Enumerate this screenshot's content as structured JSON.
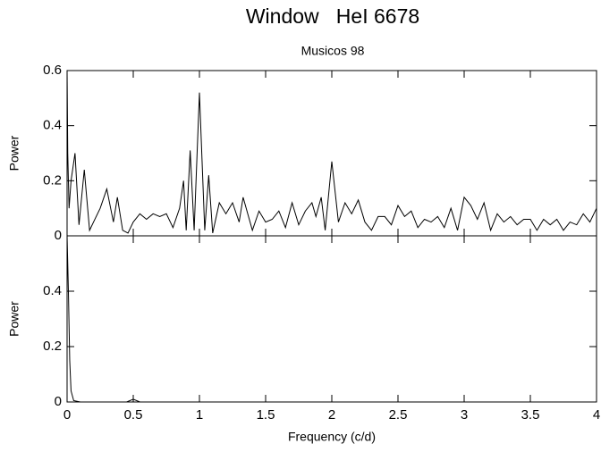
{
  "chart_data": [
    {
      "type": "line",
      "title": "Window   HeI 6678",
      "subtitle": "Musicos 98",
      "ylabel": "Power",
      "color": "#000000",
      "xlim": [
        0,
        4
      ],
      "ylim": [
        0,
        0.6
      ],
      "yticks": [
        0,
        0.2,
        0.4,
        0.6
      ],
      "x": [
        0,
        0.005,
        0.015,
        0.03,
        0.06,
        0.09,
        0.13,
        0.17,
        0.2,
        0.25,
        0.3,
        0.35,
        0.38,
        0.42,
        0.46,
        0.5,
        0.55,
        0.6,
        0.65,
        0.7,
        0.75,
        0.8,
        0.85,
        0.88,
        0.9,
        0.93,
        0.96,
        1.0,
        1.04,
        1.07,
        1.1,
        1.15,
        1.2,
        1.25,
        1.3,
        1.33,
        1.4,
        1.45,
        1.5,
        1.55,
        1.6,
        1.65,
        1.7,
        1.75,
        1.8,
        1.85,
        1.88,
        1.92,
        1.95,
        2.0,
        2.05,
        2.1,
        2.15,
        2.2,
        2.25,
        2.3,
        2.35,
        2.4,
        2.45,
        2.5,
        2.55,
        2.6,
        2.65,
        2.7,
        2.75,
        2.8,
        2.85,
        2.9,
        2.95,
        3.0,
        3.05,
        3.1,
        3.15,
        3.2,
        3.25,
        3.3,
        3.35,
        3.4,
        3.45,
        3.5,
        3.55,
        3.6,
        3.65,
        3.7,
        3.75,
        3.8,
        3.85,
        3.9,
        3.95,
        4.0
      ],
      "values": [
        0.6,
        0.3,
        0.1,
        0.2,
        0.3,
        0.04,
        0.24,
        0.02,
        0.05,
        0.1,
        0.17,
        0.05,
        0.14,
        0.02,
        0.01,
        0.05,
        0.08,
        0.06,
        0.08,
        0.07,
        0.08,
        0.03,
        0.1,
        0.2,
        0.02,
        0.31,
        0.02,
        0.52,
        0.02,
        0.22,
        0.01,
        0.12,
        0.08,
        0.12,
        0.05,
        0.14,
        0.02,
        0.09,
        0.05,
        0.06,
        0.09,
        0.03,
        0.12,
        0.04,
        0.09,
        0.12,
        0.07,
        0.14,
        0.02,
        0.27,
        0.05,
        0.12,
        0.08,
        0.13,
        0.05,
        0.02,
        0.07,
        0.07,
        0.04,
        0.11,
        0.07,
        0.09,
        0.03,
        0.06,
        0.05,
        0.07,
        0.03,
        0.1,
        0.02,
        0.14,
        0.11,
        0.06,
        0.12,
        0.02,
        0.08,
        0.05,
        0.07,
        0.04,
        0.06,
        0.06,
        0.02,
        0.06,
        0.04,
        0.06,
        0.02,
        0.05,
        0.04,
        0.08,
        0.05,
        0.1
      ]
    },
    {
      "type": "line",
      "ylabel": "Power",
      "xlabel": "Frequency (c/d)",
      "color": "#000000",
      "xlim": [
        0,
        4
      ],
      "ylim": [
        0,
        0.6
      ],
      "yticks": [
        0,
        0.2,
        0.4
      ],
      "xticks": [
        0,
        0.5,
        1,
        1.5,
        2,
        2.5,
        3,
        3.5,
        4
      ],
      "x": [
        0,
        0.01,
        0.02,
        0.03,
        0.05,
        0.1,
        0.45,
        0.5,
        0.55,
        4
      ],
      "values": [
        0.6,
        0.4,
        0.15,
        0.04,
        0.005,
        0,
        0,
        0.01,
        0,
        0
      ]
    }
  ]
}
